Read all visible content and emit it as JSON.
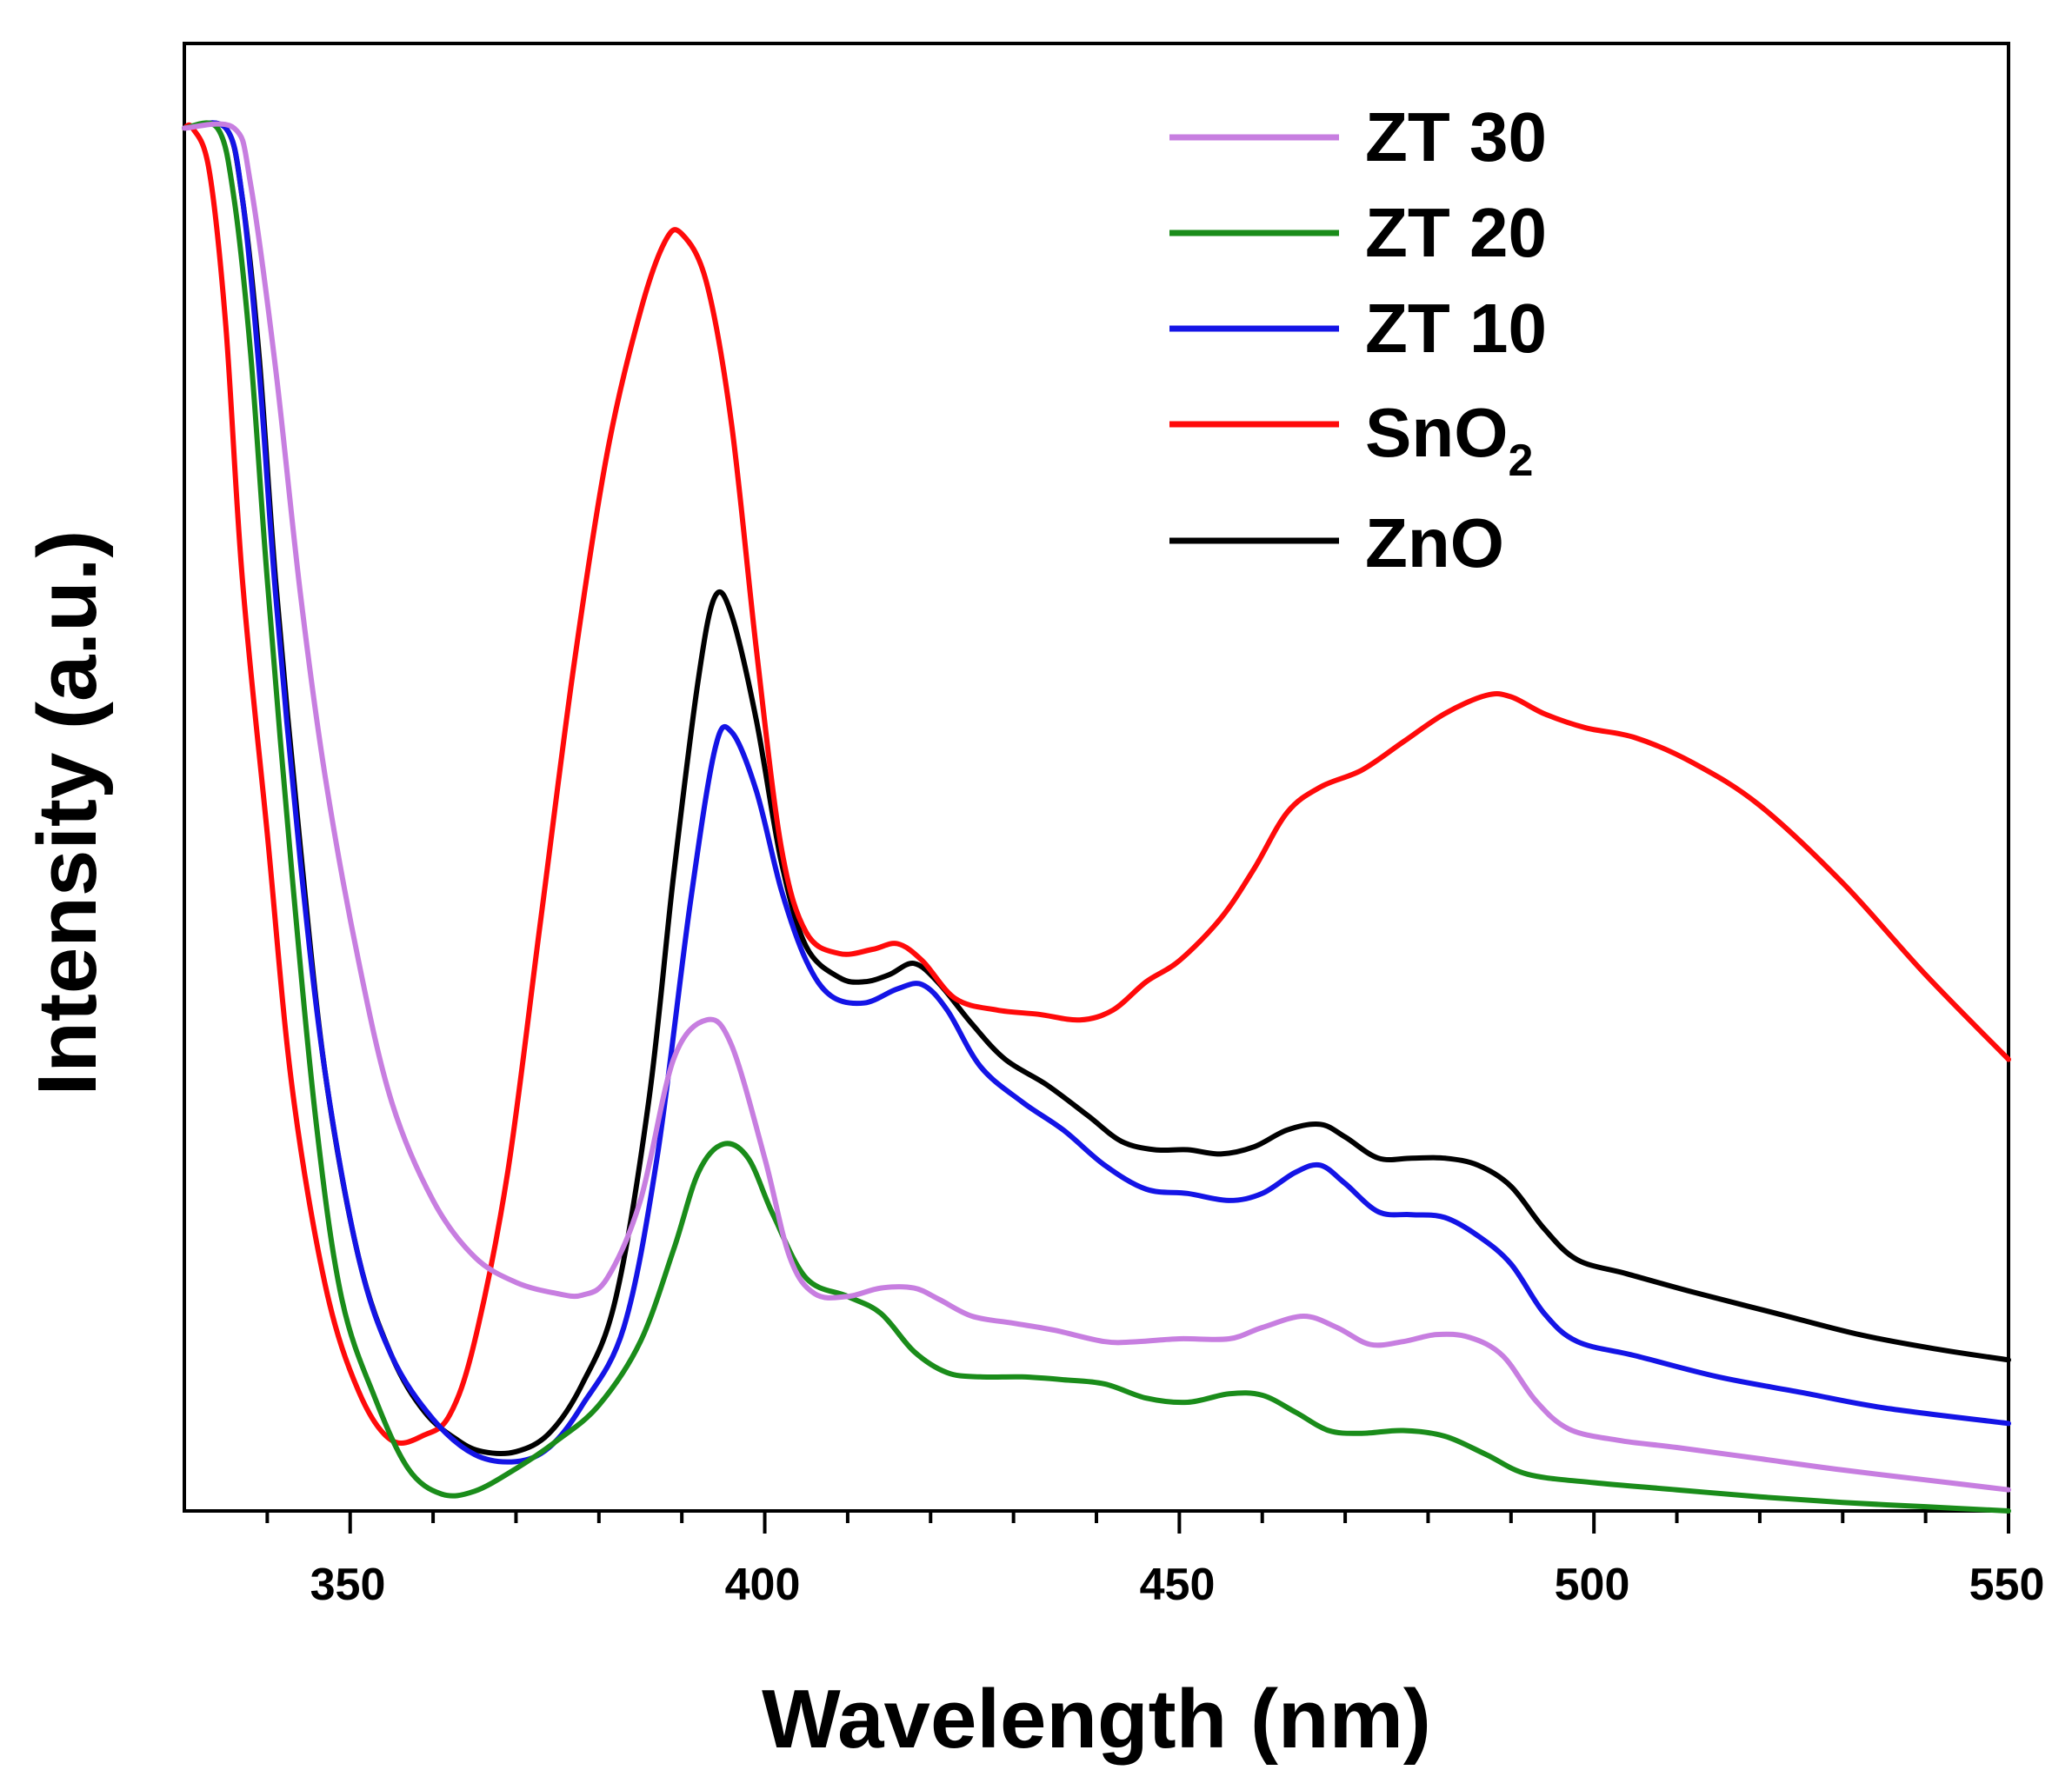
{
  "chart_data": {
    "type": "line",
    "title": "",
    "xlabel": "Wavelength (nm)",
    "ylabel": "Intensity (a.u.)",
    "xlim": [
      330,
      550
    ],
    "ylim": [
      0,
      1.04
    ],
    "xticks": [
      350,
      400,
      450,
      500,
      550
    ],
    "xtick_labels": [
      "350",
      "400",
      "450",
      "500",
      "550"
    ],
    "yticks_shown": false,
    "grid": false,
    "legend_position": "top-right",
    "series": [
      {
        "name": "ZT 30",
        "legend_label": "ZT 30",
        "color": "#c77ee0",
        "points": [
          [
            330,
            0.98
          ],
          [
            336,
            0.98
          ],
          [
            338,
            0.94
          ],
          [
            341,
            0.81
          ],
          [
            344,
            0.65
          ],
          [
            347,
            0.52
          ],
          [
            351,
            0.39
          ],
          [
            355,
            0.29
          ],
          [
            360,
            0.22
          ],
          [
            365,
            0.18
          ],
          [
            370,
            0.162
          ],
          [
            375,
            0.154
          ],
          [
            378,
            0.153
          ],
          [
            381,
            0.165
          ],
          [
            385,
            0.22
          ],
          [
            389,
            0.32
          ],
          [
            393,
            0.348
          ],
          [
            396,
            0.33
          ],
          [
            400,
            0.25
          ],
          [
            403,
            0.18
          ],
          [
            406,
            0.154
          ],
          [
            410,
            0.152
          ],
          [
            414,
            0.158
          ],
          [
            418,
            0.158
          ],
          [
            421,
            0.15
          ],
          [
            425,
            0.138
          ],
          [
            430,
            0.133
          ],
          [
            435,
            0.128
          ],
          [
            441,
            0.12
          ],
          [
            445,
            0.12
          ],
          [
            450,
            0.122
          ],
          [
            456,
            0.122
          ],
          [
            460,
            0.13
          ],
          [
            465,
            0.138
          ],
          [
            469,
            0.13
          ],
          [
            473,
            0.118
          ],
          [
            477,
            0.12
          ],
          [
            481,
            0.125
          ],
          [
            485,
            0.123
          ],
          [
            489,
            0.11
          ],
          [
            493,
            0.078
          ],
          [
            497,
            0.058
          ],
          [
            503,
            0.05
          ],
          [
            510,
            0.045
          ],
          [
            520,
            0.037
          ],
          [
            530,
            0.029
          ],
          [
            540,
            0.022
          ],
          [
            550,
            0.015
          ]
        ]
      },
      {
        "name": "ZT 20",
        "legend_label": "ZT 20",
        "color": "#1a8c1a",
        "points": [
          [
            330,
            0.98
          ],
          [
            334,
            0.98
          ],
          [
            336,
            0.93
          ],
          [
            338,
            0.82
          ],
          [
            340,
            0.66
          ],
          [
            343,
            0.45
          ],
          [
            346,
            0.27
          ],
          [
            349,
            0.15
          ],
          [
            353,
            0.08
          ],
          [
            357,
            0.03
          ],
          [
            361,
            0.012
          ],
          [
            365,
            0.014
          ],
          [
            370,
            0.03
          ],
          [
            375,
            0.05
          ],
          [
            380,
            0.075
          ],
          [
            385,
            0.12
          ],
          [
            389,
            0.185
          ],
          [
            392,
            0.24
          ],
          [
            395,
            0.26
          ],
          [
            398,
            0.25
          ],
          [
            401,
            0.21
          ],
          [
            405,
            0.165
          ],
          [
            410,
            0.152
          ],
          [
            414,
            0.14
          ],
          [
            418,
            0.113
          ],
          [
            422,
            0.098
          ],
          [
            426,
            0.095
          ],
          [
            431,
            0.095
          ],
          [
            436,
            0.093
          ],
          [
            441,
            0.09
          ],
          [
            446,
            0.08
          ],
          [
            451,
            0.077
          ],
          [
            456,
            0.083
          ],
          [
            460,
            0.082
          ],
          [
            464,
            0.07
          ],
          [
            468,
            0.057
          ],
          [
            472,
            0.055
          ],
          [
            477,
            0.057
          ],
          [
            482,
            0.053
          ],
          [
            487,
            0.04
          ],
          [
            492,
            0.026
          ],
          [
            500,
            0.02
          ],
          [
            510,
            0.015
          ],
          [
            520,
            0.01
          ],
          [
            530,
            0.006
          ],
          [
            540,
            0.003
          ],
          [
            550,
            0
          ]
        ]
      },
      {
        "name": "ZT 10",
        "legend_label": "ZT 10",
        "color": "#1414e6",
        "points": [
          [
            330,
            0.98
          ],
          [
            335,
            0.98
          ],
          [
            337,
            0.93
          ],
          [
            339,
            0.81
          ],
          [
            341,
            0.65
          ],
          [
            344,
            0.46
          ],
          [
            347,
            0.31
          ],
          [
            351,
            0.18
          ],
          [
            355,
            0.11
          ],
          [
            360,
            0.065
          ],
          [
            365,
            0.04
          ],
          [
            370,
            0.035
          ],
          [
            374,
            0.045
          ],
          [
            378,
            0.075
          ],
          [
            383,
            0.13
          ],
          [
            387,
            0.25
          ],
          [
            391,
            0.43
          ],
          [
            394,
            0.54
          ],
          [
            396,
            0.552
          ],
          [
            399,
            0.51
          ],
          [
            402,
            0.44
          ],
          [
            405,
            0.39
          ],
          [
            408,
            0.365
          ],
          [
            412,
            0.36
          ],
          [
            416,
            0.37
          ],
          [
            419,
            0.373
          ],
          [
            422,
            0.355
          ],
          [
            426,
            0.315
          ],
          [
            431,
            0.29
          ],
          [
            436,
            0.27
          ],
          [
            441,
            0.245
          ],
          [
            446,
            0.228
          ],
          [
            451,
            0.225
          ],
          [
            456,
            0.22
          ],
          [
            460,
            0.225
          ],
          [
            464,
            0.24
          ],
          [
            467,
            0.245
          ],
          [
            470,
            0.232
          ],
          [
            474,
            0.212
          ],
          [
            478,
            0.21
          ],
          [
            482,
            0.208
          ],
          [
            486,
            0.195
          ],
          [
            490,
            0.175
          ],
          [
            494,
            0.14
          ],
          [
            498,
            0.12
          ],
          [
            505,
            0.11
          ],
          [
            515,
            0.095
          ],
          [
            525,
            0.084
          ],
          [
            535,
            0.073
          ],
          [
            550,
            0.062
          ]
        ]
      },
      {
        "name": "SnO2",
        "legend_label": "SnO",
        "legend_subscript": "2",
        "color": "#ff0a0a",
        "points": [
          [
            330,
            0.98
          ],
          [
            331,
            0.98
          ],
          [
            333,
            0.95
          ],
          [
            335,
            0.84
          ],
          [
            337,
            0.66
          ],
          [
            340,
            0.48
          ],
          [
            343,
            0.3
          ],
          [
            347,
            0.16
          ],
          [
            351,
            0.085
          ],
          [
            355,
            0.05
          ],
          [
            359,
            0.054
          ],
          [
            362,
            0.068
          ],
          [
            365,
            0.12
          ],
          [
            369,
            0.24
          ],
          [
            373,
            0.42
          ],
          [
            377,
            0.6
          ],
          [
            381,
            0.75
          ],
          [
            385,
            0.85
          ],
          [
            388,
            0.9
          ],
          [
            390,
            0.905
          ],
          [
            393,
            0.87
          ],
          [
            396,
            0.77
          ],
          [
            399,
            0.61
          ],
          [
            402,
            0.47
          ],
          [
            405,
            0.41
          ],
          [
            409,
            0.395
          ],
          [
            413,
            0.398
          ],
          [
            416,
            0.402
          ],
          [
            419,
            0.39
          ],
          [
            423,
            0.363
          ],
          [
            428,
            0.355
          ],
          [
            433,
            0.352
          ],
          [
            438,
            0.348
          ],
          [
            442,
            0.355
          ],
          [
            446,
            0.375
          ],
          [
            450,
            0.39
          ],
          [
            455,
            0.42
          ],
          [
            459,
            0.455
          ],
          [
            463,
            0.495
          ],
          [
            467,
            0.513
          ],
          [
            472,
            0.525
          ],
          [
            477,
            0.545
          ],
          [
            482,
            0.565
          ],
          [
            487,
            0.578
          ],
          [
            490,
            0.577
          ],
          [
            494,
            0.565
          ],
          [
            499,
            0.555
          ],
          [
            505,
            0.548
          ],
          [
            512,
            0.53
          ],
          [
            520,
            0.5
          ],
          [
            530,
            0.445
          ],
          [
            540,
            0.38
          ],
          [
            550,
            0.32
          ]
        ]
      },
      {
        "name": "ZnO",
        "legend_label": "ZnO",
        "color": "#000000",
        "points": [
          [
            330,
            0.98
          ],
          [
            335,
            0.98
          ],
          [
            337,
            0.93
          ],
          [
            339,
            0.82
          ],
          [
            341,
            0.66
          ],
          [
            344,
            0.47
          ],
          [
            347,
            0.31
          ],
          [
            351,
            0.18
          ],
          [
            355,
            0.11
          ],
          [
            359,
            0.07
          ],
          [
            363,
            0.05
          ],
          [
            366,
            0.042
          ],
          [
            370,
            0.042
          ],
          [
            374,
            0.055
          ],
          [
            378,
            0.09
          ],
          [
            382,
            0.15
          ],
          [
            386,
            0.29
          ],
          [
            389,
            0.45
          ],
          [
            392,
            0.59
          ],
          [
            394,
            0.648
          ],
          [
            396,
            0.635
          ],
          [
            399,
            0.56
          ],
          [
            402,
            0.46
          ],
          [
            405,
            0.4
          ],
          [
            409,
            0.378
          ],
          [
            412,
            0.375
          ],
          [
            415,
            0.38
          ],
          [
            418,
            0.388
          ],
          [
            421,
            0.374
          ],
          [
            425,
            0.345
          ],
          [
            429,
            0.32
          ],
          [
            434,
            0.302
          ],
          [
            439,
            0.28
          ],
          [
            443,
            0.262
          ],
          [
            447,
            0.256
          ],
          [
            451,
            0.256
          ],
          [
            455,
            0.253
          ],
          [
            459,
            0.258
          ],
          [
            463,
            0.27
          ],
          [
            467,
            0.274
          ],
          [
            470,
            0.265
          ],
          [
            474,
            0.25
          ],
          [
            478,
            0.25
          ],
          [
            482,
            0.25
          ],
          [
            486,
            0.245
          ],
          [
            490,
            0.23
          ],
          [
            494,
            0.2
          ],
          [
            498,
            0.178
          ],
          [
            504,
            0.168
          ],
          [
            512,
            0.155
          ],
          [
            522,
            0.14
          ],
          [
            532,
            0.125
          ],
          [
            541,
            0.115
          ],
          [
            550,
            0.107
          ]
        ]
      }
    ]
  }
}
